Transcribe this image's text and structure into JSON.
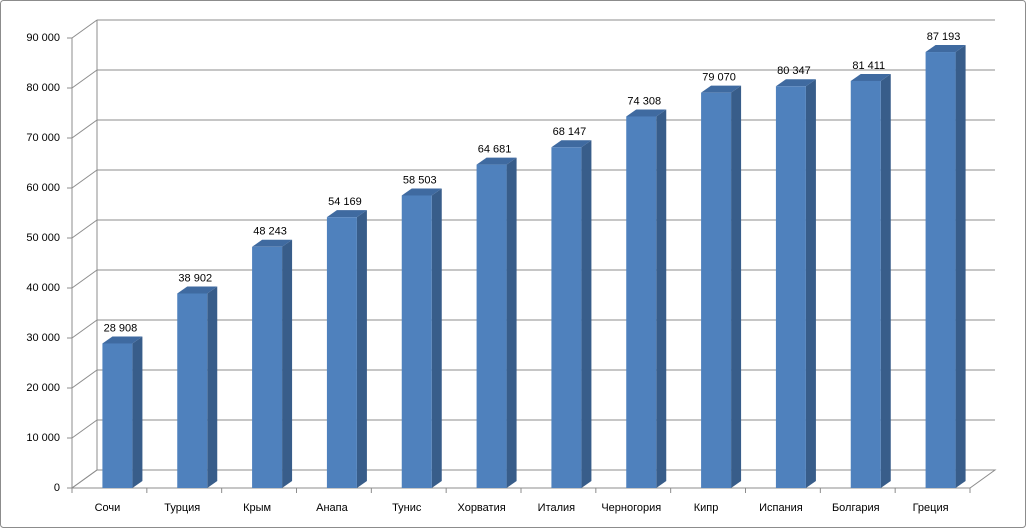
{
  "chart_data": {
    "type": "bar3d",
    "categories": [
      "Сочи",
      "Турция",
      "Крым",
      "Анапа",
      "Тунис",
      "Хорватия",
      "Италия",
      "Черногория",
      "Кипр",
      "Испания",
      "Болгария",
      "Греция"
    ],
    "values": [
      28908,
      38902,
      48243,
      54169,
      58503,
      64681,
      68147,
      74308,
      79070,
      80347,
      81411,
      87193
    ],
    "value_labels": [
      "28 908",
      "38 902",
      "48 243",
      "54 169",
      "58 503",
      "64 681",
      "68 147",
      "74 308",
      "79 070",
      "80 347",
      "81 411",
      "87 193"
    ],
    "color": "#4f81bd",
    "ylim": [
      0,
      90000
    ],
    "yticks": [
      0,
      {
        "value": 10000,
        "label": "10 000"
      },
      {
        "value": 20000,
        "label": "20 000"
      },
      {
        "value": 30000,
        "label": "30 000"
      },
      {
        "value": 40000,
        "label": "40 000"
      },
      {
        "value": 50000,
        "label": "50 000"
      },
      {
        "value": 60000,
        "label": "60 000"
      },
      {
        "value": 70000,
        "label": "70 000"
      },
      {
        "value": 80000,
        "label": "80 000"
      },
      {
        "value": 90000,
        "label": "90 000"
      }
    ],
    "grid": true
  }
}
